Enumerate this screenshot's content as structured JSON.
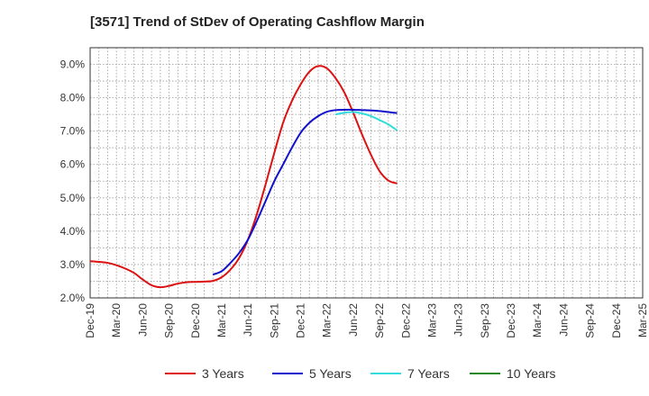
{
  "chart_data": {
    "type": "line",
    "title": "[3571]  Trend of StDev of Operating Cashflow Margin",
    "xlabel": "",
    "ylabel": "",
    "x_ticks": [
      "Dec-19",
      "Mar-20",
      "Jun-20",
      "Sep-20",
      "Dec-20",
      "Mar-21",
      "Jun-21",
      "Sep-21",
      "Dec-21",
      "Mar-22",
      "Jun-22",
      "Sep-22",
      "Dec-22",
      "Mar-23",
      "Jun-23",
      "Sep-23",
      "Dec-23",
      "Mar-24",
      "Jun-24",
      "Sep-24",
      "Dec-24",
      "Mar-25"
    ],
    "y_ticks": [
      "2.0%",
      "3.0%",
      "4.0%",
      "5.0%",
      "6.0%",
      "7.0%",
      "8.0%",
      "9.0%"
    ],
    "ylim": [
      2.0,
      9.5
    ],
    "grid": true,
    "legend_position": "bottom",
    "series": [
      {
        "name": "3 Years",
        "color": "#dd1111",
        "values": [
          3.1,
          3.08,
          3.05,
          2.98,
          2.88,
          2.75,
          2.55,
          2.38,
          2.32,
          2.36,
          2.43,
          2.47,
          2.48,
          2.49,
          2.51,
          2.62,
          2.85,
          3.2,
          3.75,
          4.5,
          5.4,
          6.35,
          7.25,
          7.9,
          8.4,
          8.78,
          8.95,
          8.88,
          8.58,
          8.15,
          7.55,
          6.9,
          6.3,
          5.8,
          5.52,
          5.43
        ]
      },
      {
        "name": "5 Years",
        "color": "#1111cc",
        "values": [
          null,
          null,
          null,
          null,
          null,
          null,
          null,
          null,
          null,
          null,
          null,
          null,
          null,
          null,
          2.7,
          2.8,
          3.05,
          3.35,
          3.75,
          4.3,
          4.9,
          5.5,
          6.0,
          6.5,
          6.95,
          7.25,
          7.45,
          7.58,
          7.63,
          7.64,
          7.64,
          7.63,
          7.62,
          7.6,
          7.57,
          7.54
        ]
      },
      {
        "name": "7 Years",
        "color": "#33dddd",
        "values": [
          null,
          null,
          null,
          null,
          null,
          null,
          null,
          null,
          null,
          null,
          null,
          null,
          null,
          null,
          null,
          null,
          null,
          null,
          null,
          null,
          null,
          null,
          null,
          null,
          null,
          null,
          null,
          null,
          7.5,
          7.55,
          7.57,
          7.53,
          7.45,
          7.33,
          7.2,
          7.02
        ]
      },
      {
        "name": "10 Years",
        "color": "#228822",
        "values": []
      }
    ]
  }
}
